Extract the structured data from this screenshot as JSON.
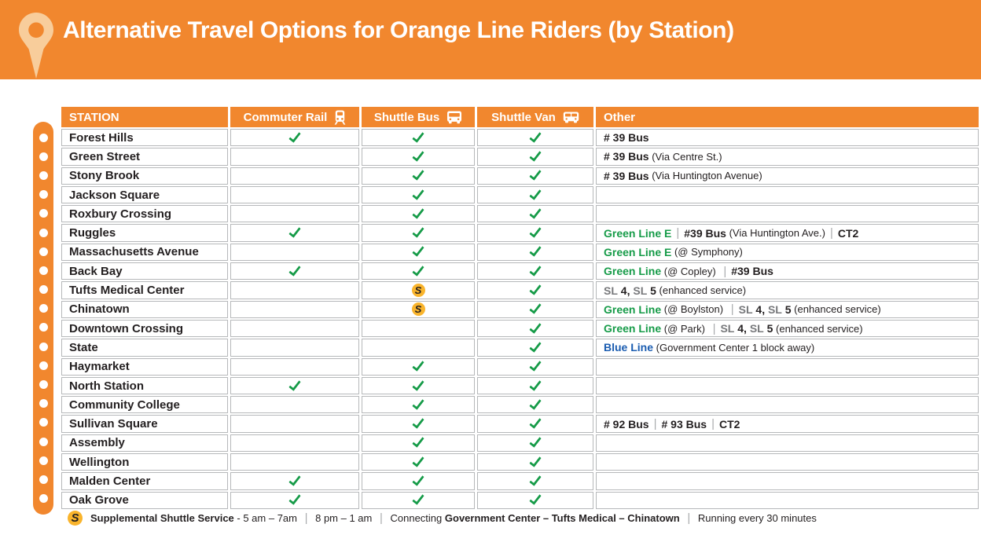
{
  "banner": {
    "title": "Alternative Travel Options for Orange Line Riders (by Station)"
  },
  "colors": {
    "orange": "#F1872E",
    "orange_light": "#F8CD9B",
    "green": "#169B48",
    "blue": "#1A5CB0",
    "silver": "#77787B",
    "yellow": "#F9B42C",
    "border": "#B6B8BA",
    "text": "#231F20"
  },
  "table": {
    "headers": {
      "station": "STATION",
      "commuter_rail": "Commuter Rail",
      "shuttle_bus": "Shuttle Bus",
      "shuttle_van": "Shuttle Van",
      "other": "Other"
    },
    "rows": [
      {
        "station": "Forest Hills",
        "cr": "check",
        "bus": "check",
        "van": "check",
        "other": [
          {
            "t": "# 39 Bus",
            "s": "bold"
          }
        ]
      },
      {
        "station": "Green Street",
        "cr": "",
        "bus": "check",
        "van": "check",
        "other": [
          {
            "t": "# 39 Bus",
            "s": "bold"
          },
          {
            "t": " (Via Centre St.)",
            "s": "reg"
          }
        ]
      },
      {
        "station": "Stony Brook",
        "cr": "",
        "bus": "check",
        "van": "check",
        "other": [
          {
            "t": "# 39 Bus",
            "s": "bold"
          },
          {
            "t": " (Via Huntington Avenue)",
            "s": "reg"
          }
        ]
      },
      {
        "station": "Jackson Square",
        "cr": "",
        "bus": "check",
        "van": "check",
        "other": []
      },
      {
        "station": "Roxbury Crossing",
        "cr": "",
        "bus": "check",
        "van": "check",
        "other": []
      },
      {
        "station": "Ruggles",
        "cr": "check",
        "bus": "check",
        "van": "check",
        "other": [
          {
            "t": "Green Line E",
            "s": "green"
          },
          {
            "t": "|",
            "s": "sep"
          },
          {
            "t": "#39 Bus",
            "s": "bold"
          },
          {
            "t": " (Via Huntington Ave.)",
            "s": "reg"
          },
          {
            "t": "|",
            "s": "sep"
          },
          {
            "t": "CT2",
            "s": "bold"
          }
        ]
      },
      {
        "station": "Massachusetts Avenue",
        "cr": "",
        "bus": "check",
        "van": "check",
        "other": [
          {
            "t": "Green Line E",
            "s": "green"
          },
          {
            "t": " (@ Symphony)",
            "s": "reg"
          }
        ]
      },
      {
        "station": "Back Bay",
        "cr": "check",
        "bus": "check",
        "van": "check",
        "other": [
          {
            "t": "Green Line",
            "s": "green"
          },
          {
            "t": " (@ Copley) ",
            "s": "reg"
          },
          {
            "t": "|",
            "s": "sep"
          },
          {
            "t": "#39 Bus",
            "s": "bold"
          }
        ]
      },
      {
        "station": "Tufts Medical Center",
        "cr": "",
        "bus": "s",
        "van": "check",
        "other": [
          {
            "t": "SL",
            "s": "sl"
          },
          {
            "t": " 4",
            "s": "bold"
          },
          {
            "t": ", ",
            "s": "bold"
          },
          {
            "t": "SL",
            "s": "sl"
          },
          {
            "t": " 5",
            "s": "bold"
          },
          {
            "t": " (enhanced service)",
            "s": "reg"
          }
        ]
      },
      {
        "station": "Chinatown",
        "cr": "",
        "bus": "s",
        "van": "check",
        "other": [
          {
            "t": "Green Line",
            "s": "green"
          },
          {
            "t": " (@ Boylston) ",
            "s": "reg"
          },
          {
            "t": "|",
            "s": "sep"
          },
          {
            "t": "SL",
            "s": "sl"
          },
          {
            "t": " 4",
            "s": "bold"
          },
          {
            "t": ", ",
            "s": "bold"
          },
          {
            "t": "SL",
            "s": "sl"
          },
          {
            "t": " 5",
            "s": "bold"
          },
          {
            "t": " (enhanced service)",
            "s": "reg"
          }
        ]
      },
      {
        "station": "Downtown Crossing",
        "cr": "",
        "bus": "",
        "van": "check",
        "other": [
          {
            "t": "Green Line",
            "s": "green"
          },
          {
            "t": " (@ Park) ",
            "s": "reg"
          },
          {
            "t": "|",
            "s": "sep"
          },
          {
            "t": "SL",
            "s": "sl"
          },
          {
            "t": " 4",
            "s": "bold"
          },
          {
            "t": ", ",
            "s": "bold"
          },
          {
            "t": "SL",
            "s": "sl"
          },
          {
            "t": " 5",
            "s": "bold"
          },
          {
            "t": " (enhanced service)",
            "s": "reg"
          }
        ]
      },
      {
        "station": "State",
        "cr": "",
        "bus": "",
        "van": "check",
        "other": [
          {
            "t": "Blue Line",
            "s": "blue"
          },
          {
            "t": " (Government Center 1 block away)",
            "s": "reg"
          }
        ]
      },
      {
        "station": "Haymarket",
        "cr": "",
        "bus": "check",
        "van": "check",
        "other": []
      },
      {
        "station": "North Station",
        "cr": "check",
        "bus": "check",
        "van": "check",
        "other": []
      },
      {
        "station": "Community College",
        "cr": "",
        "bus": "check",
        "van": "check",
        "other": []
      },
      {
        "station": "Sullivan Square",
        "cr": "",
        "bus": "check",
        "van": "check",
        "other": [
          {
            "t": "# 92 Bus",
            "s": "bold"
          },
          {
            "t": "|",
            "s": "sep"
          },
          {
            "t": "# 93 Bus",
            "s": "bold"
          },
          {
            "t": "|",
            "s": "sep"
          },
          {
            "t": "CT2",
            "s": "bold"
          }
        ]
      },
      {
        "station": "Assembly",
        "cr": "",
        "bus": "check",
        "van": "check",
        "other": []
      },
      {
        "station": "Wellington",
        "cr": "",
        "bus": "check",
        "van": "check",
        "other": []
      },
      {
        "station": "Malden Center",
        "cr": "check",
        "bus": "check",
        "van": "check",
        "other": []
      },
      {
        "station": "Oak Grove",
        "cr": "check",
        "bus": "check",
        "van": "check",
        "other": []
      }
    ]
  },
  "legend": {
    "badge": "S",
    "segments": [
      {
        "t": "Supplemental Shuttle Service",
        "s": "bold"
      },
      {
        "t": " - 5 am – 7am ",
        "s": "reg"
      },
      {
        "t": "|",
        "s": "sep"
      },
      {
        "t": " 8 pm – 1 am ",
        "s": "reg"
      },
      {
        "t": "|",
        "s": "sep"
      },
      {
        "t": " Connecting ",
        "s": "reg"
      },
      {
        "t": "Government Center – Tufts Medical – Chinatown",
        "s": "bold"
      },
      {
        "t": " ",
        "s": "reg"
      },
      {
        "t": "|",
        "s": "sep"
      },
      {
        "t": " Running every 30 minutes",
        "s": "reg"
      }
    ]
  }
}
